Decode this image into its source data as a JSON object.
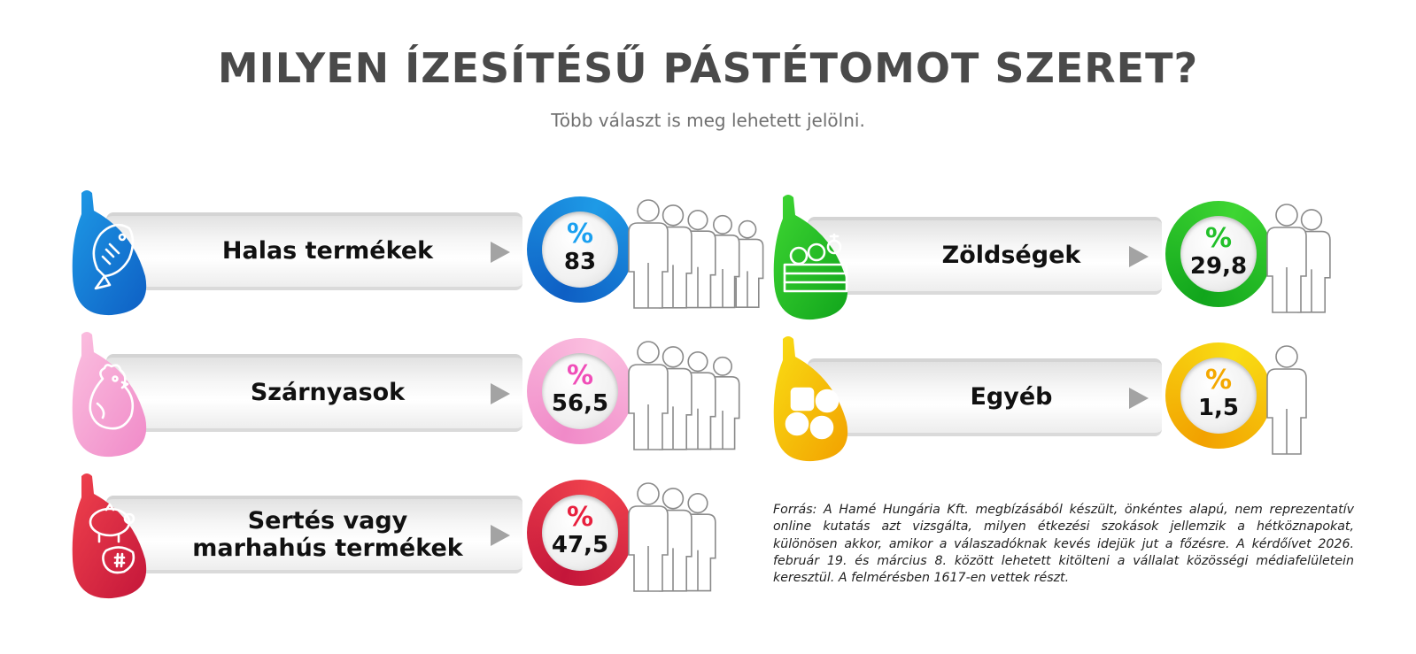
{
  "title": "MILYEN ÍZESÍTÉSŰ PÁSTÉTOMOT SZERET?",
  "subtitle": "Több választ is meg lehetett jelölni.",
  "percent_sign": "%",
  "source": "Forrás: A Hamé Hungária Kft. megbízásából készült, önkéntes alapú, nem reprezentatív online kutatás azt vizsgálta, milyen étkezési szokások jellemzik a hétköznapokat, különösen akkor, amikor a válaszadóknak kevés idejük jut a főzésre. A kérdőívet 2026. február 19. és március 8. között lehetett kitölteni a vállalat közösségi médiafelületein keresztül. A felmérésben 1617-en vettek részt.",
  "chart_data": {
    "type": "bar",
    "title": "MILYEN ÍZESÍTÉSŰ PÁSTÉTOMOT SZERET?",
    "subtitle": "Több választ is meg lehetett jelölni.",
    "unit": "%",
    "categories": [
      "Halas termékek",
      "Szárnyasok",
      "Sertés vagy marhahús termékek",
      "Zöldségek",
      "Egyéb"
    ],
    "values": [
      83,
      56.5,
      47.5,
      29.8,
      1.5
    ],
    "value_labels": [
      "83",
      "56,5",
      "47,5",
      "29,8",
      "1,5"
    ],
    "label_lines": [
      [
        "Halas termékek"
      ],
      [
        "Szárnyasok"
      ],
      [
        "Sertés vagy",
        "marhahús termékek"
      ],
      [
        "Zöldségek"
      ],
      [
        "Egyéb"
      ]
    ],
    "icons": [
      "fish-icon",
      "chicken-icon",
      "pig-and-steak-icon",
      "vegetable-crate-icon",
      "shapes-icon"
    ],
    "people_counts": [
      5,
      4,
      3,
      2,
      1
    ],
    "colors": [
      {
        "dark": "#0e5fc4",
        "light": "#1e9ae6",
        "accent": "#1aa0f0"
      },
      {
        "dark": "#f08ac8",
        "light": "#fbc0e0",
        "accent": "#f04eb8"
      },
      {
        "dark": "#c4163a",
        "light": "#f0424d",
        "accent": "#e8203e"
      },
      {
        "dark": "#11a51c",
        "light": "#3ed632",
        "accent": "#22c02a"
      },
      {
        "dark": "#f2a100",
        "light": "#f9dd14",
        "accent": "#f4a800"
      }
    ]
  }
}
